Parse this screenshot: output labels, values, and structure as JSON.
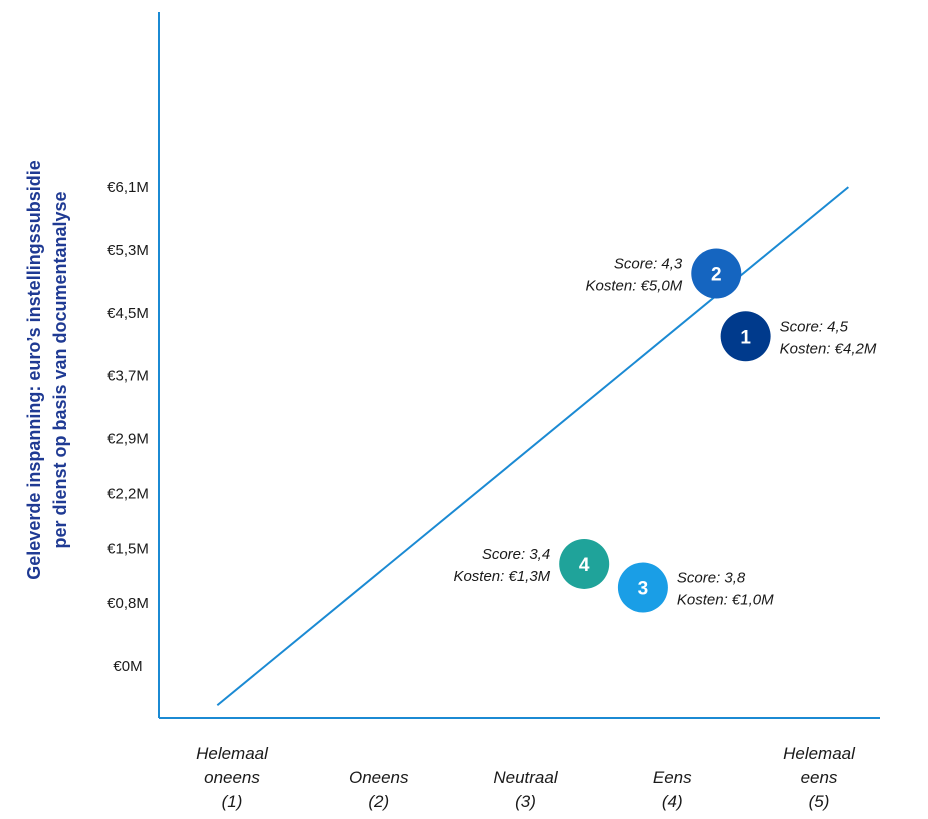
{
  "chart_data": {
    "type": "scatter",
    "ylabel": [
      "Geleverde inspanning: euro’s instellingssubsidie",
      "per dienst op basis van documentanalyse"
    ],
    "xlabel": "",
    "xlim": [
      1,
      5
    ],
    "ylim": [
      0,
      6.1
    ],
    "y_ticks": [
      {
        "value": 0,
        "label": "€0M"
      },
      {
        "value": 0.8,
        "label": "€0,8M"
      },
      {
        "value": 1.5,
        "label": "€1,5M"
      },
      {
        "value": 2.2,
        "label": "€2,2M"
      },
      {
        "value": 2.9,
        "label": "€2,9M"
      },
      {
        "value": 3.7,
        "label": "€3,7M"
      },
      {
        "value": 4.5,
        "label": "€4,5M"
      },
      {
        "value": 5.3,
        "label": "€5,3M"
      },
      {
        "value": 6.1,
        "label": "€6,1M"
      }
    ],
    "x_ticks": [
      {
        "value": 1,
        "lines": [
          "Helemaal",
          "oneens",
          "(1)"
        ]
      },
      {
        "value": 2,
        "lines": [
          "Oneens",
          "(2)"
        ]
      },
      {
        "value": 3,
        "lines": [
          "Neutraal",
          "(3)"
        ]
      },
      {
        "value": 4,
        "lines": [
          "Eens",
          "(4)"
        ]
      },
      {
        "value": 5,
        "lines": [
          "Helemaal",
          "eens",
          "(5)"
        ]
      }
    ],
    "reference_line": {
      "from": [
        0.9,
        -0.5
      ],
      "to": [
        5.2,
        6.1
      ],
      "color": "#1b8ad3"
    },
    "points": [
      {
        "id": "1",
        "x": 4.5,
        "y": 4.2,
        "color": "#003a8c",
        "label_side": "right",
        "score_label": "Score: 4,5",
        "cost_label": "Kosten: €4,2M"
      },
      {
        "id": "2",
        "x": 4.3,
        "y": 5.0,
        "color": "#1565c0",
        "label_side": "left",
        "score_label": "Score: 4,3",
        "cost_label": "Kosten: €5,0M"
      },
      {
        "id": "3",
        "x": 3.8,
        "y": 1.0,
        "color": "#1a9ee6",
        "label_side": "right",
        "score_label": "Score: 3,8",
        "cost_label": "Kosten: €1,0M"
      },
      {
        "id": "4",
        "x": 3.4,
        "y": 1.3,
        "color": "#1fa39a",
        "label_side": "left",
        "score_label": "Score: 3,4",
        "cost_label": "Kosten: €1,3M"
      }
    ],
    "axis_color": "#1b8ad3",
    "grid": false,
    "legend": "none"
  }
}
